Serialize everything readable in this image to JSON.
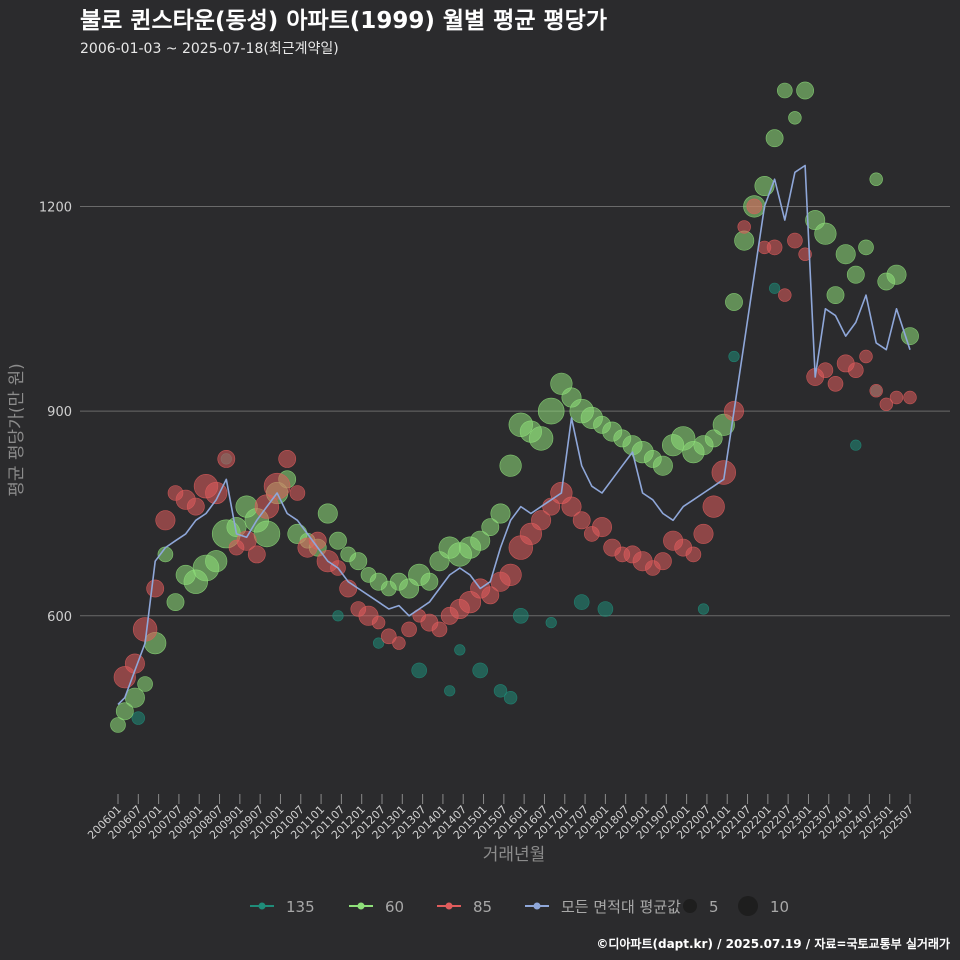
{
  "chart_data": {
    "type": "scatter",
    "title": "불로 퀸스타운(동성) 아파트(1999) 월별 평균 평당가",
    "subtitle": "2006-01-03 ~ 2025-07-18(최근계약일)",
    "xlabel": "거래년월",
    "ylabel": "평균 평당가(만 원)",
    "caption": "©디아파트(dapt.kr) / 2025.07.19 / 자료=국토교통부 실거래가",
    "x_range": [
      "2006-01",
      "2025-07"
    ],
    "ylim": [
      330,
      1400
    ],
    "y_ticks": [
      600,
      900,
      1200
    ],
    "y_tick_labels": [
      "600",
      "900",
      "1200"
    ],
    "x_ticks": [
      "200601",
      "200607",
      "200701",
      "200707",
      "200801",
      "200807",
      "200901",
      "200907",
      "201001",
      "201007",
      "201101",
      "201107",
      "201201",
      "201207",
      "201301",
      "201307",
      "201401",
      "201407",
      "201501",
      "201507",
      "201601",
      "201607",
      "201701",
      "201707",
      "201801",
      "201807",
      "201901",
      "201907",
      "202001",
      "202007",
      "202101",
      "202107",
      "202201",
      "202207",
      "202301",
      "202307",
      "202401",
      "202407",
      "202501",
      "202507"
    ],
    "grid": "horizontal",
    "legend": {
      "placement": "bottom",
      "series_items": [
        {
          "label": "135",
          "color": "#1f8c79"
        },
        {
          "label": "60",
          "color": "#8fe07a"
        },
        {
          "label": "85",
          "color": "#e05c5c"
        },
        {
          "label": "모든 면적대 평균값",
          "color": "#8fa7d9"
        }
      ],
      "size_items": [
        {
          "label": "5",
          "size": 5
        },
        {
          "label": "10",
          "size": 10
        }
      ]
    },
    "series": [
      {
        "name": "모든 면적대 평균값",
        "kind": "line",
        "color": "#8fa7d9",
        "x": [
          "2006-01",
          "2006-03",
          "2006-06",
          "2006-09",
          "2006-12",
          "2007-03",
          "2007-06",
          "2007-09",
          "2007-12",
          "2008-03",
          "2008-06",
          "2008-09",
          "2008-12",
          "2009-03",
          "2009-06",
          "2009-09",
          "2009-12",
          "2010-03",
          "2010-06",
          "2010-09",
          "2010-12",
          "2011-03",
          "2011-06",
          "2011-09",
          "2011-12",
          "2012-03",
          "2012-06",
          "2012-09",
          "2012-12",
          "2013-03",
          "2013-06",
          "2013-09",
          "2013-12",
          "2014-03",
          "2014-06",
          "2014-09",
          "2014-12",
          "2015-03",
          "2015-06",
          "2015-09",
          "2015-12",
          "2016-03",
          "2016-06",
          "2016-09",
          "2016-12",
          "2017-03",
          "2017-06",
          "2017-09",
          "2017-12",
          "2018-03",
          "2018-06",
          "2018-09",
          "2018-12",
          "2019-03",
          "2019-06",
          "2019-09",
          "2019-12",
          "2020-03",
          "2020-06",
          "2020-09",
          "2020-12",
          "2021-03",
          "2021-06",
          "2021-09",
          "2021-12",
          "2022-03",
          "2022-06",
          "2022-09",
          "2022-12",
          "2023-03",
          "2023-06",
          "2023-09",
          "2023-12",
          "2024-03",
          "2024-06",
          "2024-09",
          "2024-12",
          "2025-03",
          "2025-07"
        ],
        "y": [
          470,
          480,
          520,
          560,
          680,
          700,
          710,
          720,
          740,
          750,
          770,
          800,
          720,
          715,
          740,
          760,
          780,
          750,
          740,
          720,
          700,
          680,
          670,
          650,
          640,
          630,
          620,
          610,
          615,
          600,
          610,
          620,
          640,
          660,
          670,
          660,
          640,
          650,
          700,
          740,
          760,
          750,
          760,
          770,
          780,
          890,
          820,
          790,
          780,
          800,
          820,
          840,
          780,
          770,
          750,
          740,
          760,
          770,
          780,
          790,
          800,
          900,
          1000,
          1100,
          1200,
          1240,
          1180,
          1250,
          1260,
          950,
          1050,
          1040,
          1010,
          1030,
          1070,
          1000,
          990,
          1050,
          990
        ]
      },
      {
        "name": "135",
        "kind": "points",
        "color": "#1f8c79",
        "x": [
          "2006-07",
          "2008-09",
          "2011-06",
          "2012-06",
          "2013-06",
          "2014-03",
          "2014-06",
          "2014-12",
          "2015-06",
          "2015-09",
          "2015-12",
          "2016-09",
          "2017-06",
          "2018-01",
          "2020-06",
          "2021-03",
          "2022-03",
          "2024-03",
          "2024-09"
        ],
        "y": [
          450,
          830,
          600,
          560,
          520,
          490,
          550,
          520,
          490,
          480,
          600,
          590,
          620,
          610,
          610,
          980,
          1080,
          850,
          930
        ],
        "sizes": [
          4,
          3,
          3,
          3,
          5,
          3,
          3,
          5,
          4,
          4,
          5,
          3,
          5,
          5,
          3,
          3,
          3,
          3,
          3
        ]
      },
      {
        "name": "60",
        "kind": "points",
        "color": "#8fe07a",
        "x": [
          "2006-01",
          "2006-03",
          "2006-06",
          "2006-09",
          "2006-12",
          "2007-03",
          "2007-06",
          "2007-09",
          "2007-12",
          "2008-03",
          "2008-06",
          "2008-09",
          "2008-12",
          "2009-03",
          "2009-06",
          "2009-09",
          "2009-12",
          "2010-03",
          "2010-06",
          "2010-09",
          "2010-12",
          "2011-03",
          "2011-06",
          "2011-09",
          "2011-12",
          "2012-03",
          "2012-06",
          "2012-09",
          "2012-12",
          "2013-03",
          "2013-06",
          "2013-09",
          "2013-12",
          "2014-03",
          "2014-06",
          "2014-09",
          "2014-12",
          "2015-03",
          "2015-06",
          "2015-09",
          "2015-12",
          "2016-03",
          "2016-06",
          "2016-09",
          "2016-12",
          "2017-03",
          "2017-06",
          "2017-09",
          "2017-12",
          "2018-03",
          "2018-06",
          "2018-09",
          "2018-12",
          "2019-03",
          "2019-06",
          "2019-09",
          "2019-12",
          "2020-03",
          "2020-06",
          "2020-09",
          "2020-12",
          "2021-03",
          "2021-06",
          "2021-09",
          "2021-12",
          "2022-03",
          "2022-06",
          "2022-09",
          "2022-12",
          "2023-03",
          "2023-06",
          "2023-09",
          "2023-12",
          "2024-03",
          "2024-06",
          "2024-09",
          "2024-12",
          "2025-03",
          "2025-07"
        ],
        "y": [
          440,
          460,
          480,
          500,
          560,
          690,
          620,
          660,
          650,
          670,
          680,
          720,
          730,
          760,
          740,
          720,
          780,
          800,
          720,
          710,
          700,
          750,
          710,
          690,
          680,
          660,
          650,
          640,
          650,
          640,
          660,
          650,
          680,
          700,
          690,
          700,
          710,
          730,
          750,
          820,
          880,
          870,
          860,
          900,
          940,
          920,
          900,
          890,
          880,
          870,
          860,
          850,
          840,
          830,
          820,
          850,
          860,
          840,
          850,
          860,
          880,
          1060,
          1150,
          1200,
          1230,
          1300,
          1370,
          1330,
          1370,
          1180,
          1160,
          1070,
          1130,
          1100,
          1140,
          1240,
          1090,
          1100,
          1010
        ],
        "sizes": [
          5,
          6,
          7,
          5,
          8,
          5,
          6,
          7,
          9,
          10,
          8,
          11,
          7,
          8,
          9,
          10,
          8,
          6,
          7,
          5,
          6,
          7,
          6,
          5,
          6,
          5,
          6,
          5,
          6,
          7,
          8,
          6,
          7,
          8,
          9,
          8,
          7,
          6,
          7,
          8,
          9,
          8,
          9,
          10,
          8,
          7,
          9,
          8,
          6,
          7,
          6,
          7,
          8,
          6,
          7,
          8,
          9,
          8,
          7,
          6,
          8,
          6,
          7,
          8,
          7,
          6,
          5,
          4,
          6,
          7,
          8,
          6,
          7,
          6,
          5,
          4,
          6,
          7,
          6
        ]
      },
      {
        "name": "85",
        "kind": "points",
        "color": "#e05c5c",
        "x": [
          "2006-03",
          "2006-06",
          "2006-09",
          "2006-12",
          "2007-03",
          "2007-06",
          "2007-09",
          "2007-12",
          "2008-03",
          "2008-06",
          "2008-09",
          "2008-12",
          "2009-03",
          "2009-06",
          "2009-09",
          "2009-12",
          "2010-03",
          "2010-06",
          "2010-09",
          "2010-12",
          "2011-03",
          "2011-06",
          "2011-09",
          "2011-12",
          "2012-03",
          "2012-06",
          "2012-09",
          "2012-12",
          "2013-03",
          "2013-06",
          "2013-09",
          "2013-12",
          "2014-03",
          "2014-06",
          "2014-09",
          "2014-12",
          "2015-03",
          "2015-06",
          "2015-09",
          "2015-12",
          "2016-03",
          "2016-06",
          "2016-09",
          "2016-12",
          "2017-03",
          "2017-06",
          "2017-09",
          "2017-12",
          "2018-03",
          "2018-06",
          "2018-09",
          "2018-12",
          "2019-03",
          "2019-06",
          "2019-09",
          "2019-12",
          "2020-03",
          "2020-06",
          "2020-09",
          "2020-12",
          "2021-03",
          "2021-06",
          "2021-09",
          "2021-12",
          "2022-03",
          "2022-06",
          "2022-09",
          "2022-12",
          "2023-03",
          "2023-06",
          "2023-09",
          "2023-12",
          "2024-03",
          "2024-06",
          "2024-09",
          "2024-12",
          "2025-03",
          "2025-07"
        ],
        "y": [
          510,
          530,
          580,
          640,
          740,
          780,
          770,
          760,
          790,
          780,
          830,
          700,
          710,
          690,
          760,
          790,
          830,
          780,
          700,
          710,
          680,
          670,
          640,
          610,
          600,
          590,
          570,
          560,
          580,
          600,
          590,
          580,
          600,
          610,
          620,
          640,
          630,
          650,
          660,
          700,
          720,
          740,
          760,
          780,
          760,
          740,
          720,
          730,
          700,
          690,
          690,
          680,
          670,
          680,
          710,
          700,
          690,
          720,
          760,
          810,
          900,
          1170,
          1200,
          1140,
          1140,
          1070,
          1150,
          1130,
          950,
          960,
          940,
          970,
          960,
          980,
          930,
          910,
          920,
          920
        ],
        "sizes": [
          8,
          7,
          9,
          6,
          7,
          5,
          7,
          6,
          9,
          8,
          6,
          5,
          7,
          6,
          9,
          10,
          6,
          5,
          7,
          6,
          8,
          5,
          6,
          5,
          7,
          4,
          5,
          4,
          5,
          4,
          6,
          5,
          6,
          7,
          8,
          7,
          6,
          7,
          8,
          9,
          8,
          7,
          6,
          8,
          7,
          6,
          5,
          7,
          6,
          5,
          6,
          7,
          5,
          6,
          7,
          6,
          5,
          7,
          8,
          9,
          7,
          4,
          5,
          4,
          5,
          4,
          5,
          4,
          6,
          5,
          5,
          6,
          5,
          4,
          4,
          4,
          4,
          4
        ]
      }
    ]
  }
}
